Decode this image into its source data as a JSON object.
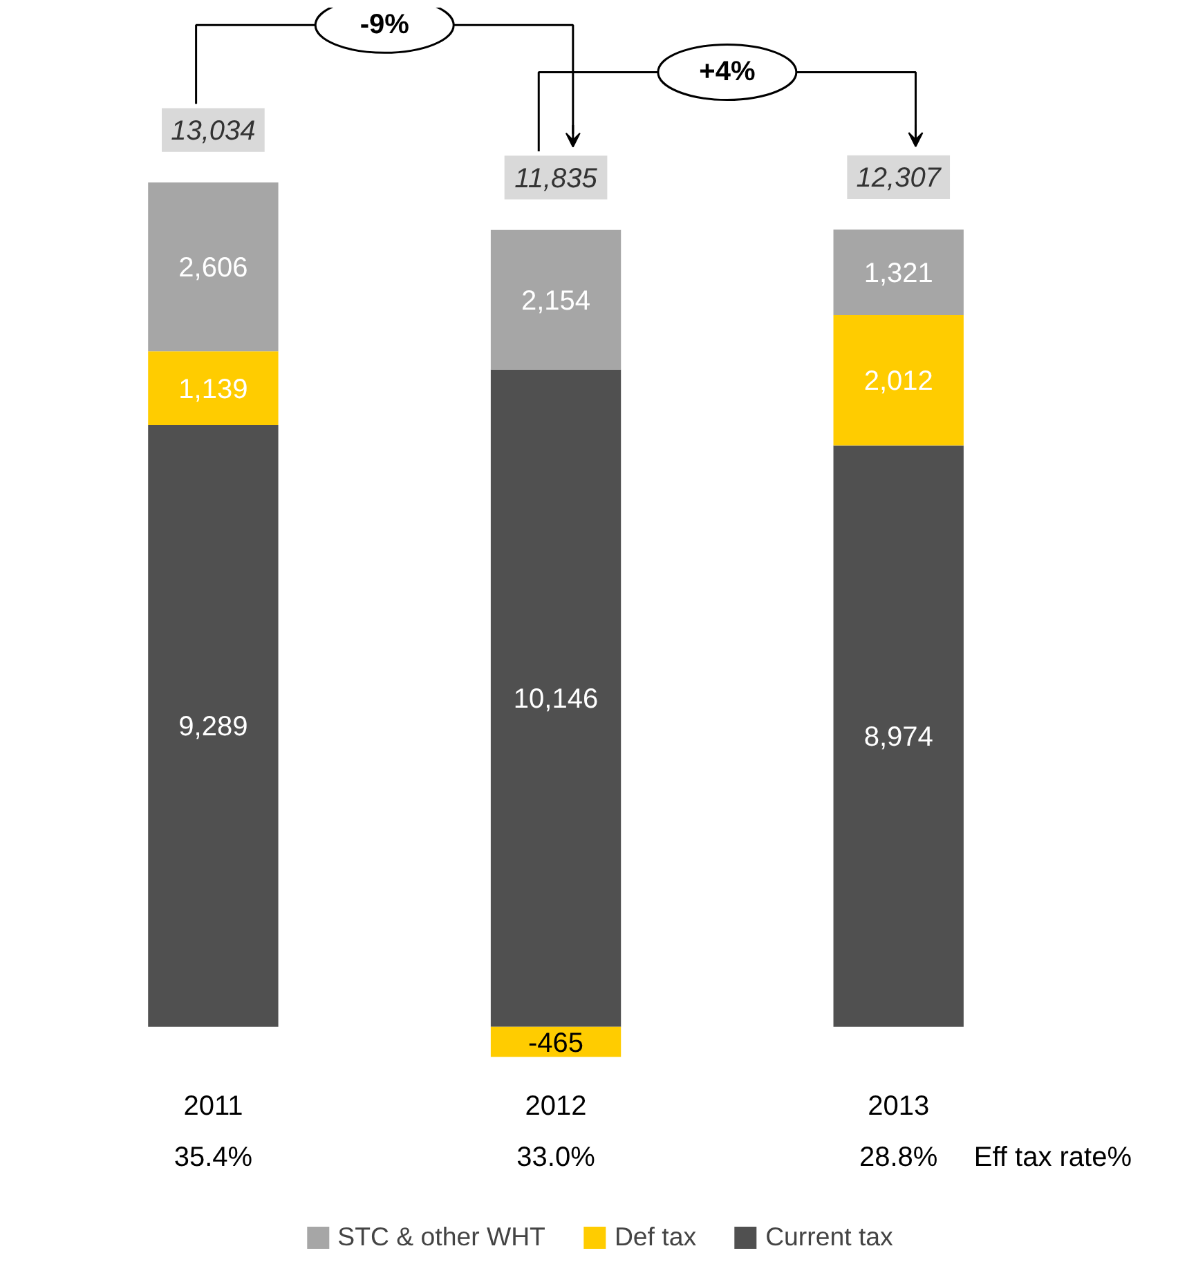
{
  "chart_data": {
    "type": "bar",
    "stacked": true,
    "categories": [
      "2011",
      "2012",
      "2013"
    ],
    "series": [
      {
        "name": "Current tax",
        "color": "#505050",
        "values": [
          9289,
          10146,
          8974
        ],
        "value_labels": [
          "9,289",
          "10,146",
          "8,974"
        ]
      },
      {
        "name": "Def tax",
        "color": "#ffcc00",
        "values": [
          1139,
          -465,
          2012
        ],
        "value_labels": [
          "1,139",
          "-465",
          "2,012"
        ]
      },
      {
        "name": "STC & other WHT",
        "color": "#a6a6a6",
        "values": [
          2606,
          2154,
          1321
        ],
        "value_labels": [
          "2,606",
          "2,154",
          "1,321"
        ]
      }
    ],
    "totals": [
      "13,034",
      "11,835",
      "12,307"
    ],
    "annotations": [
      "35.4%",
      "33.0%",
      "28.8%",
      "Eff tax rate%",
      "-9%",
      "+4%"
    ],
    "legend": "bottom",
    "grid": false
  }
}
